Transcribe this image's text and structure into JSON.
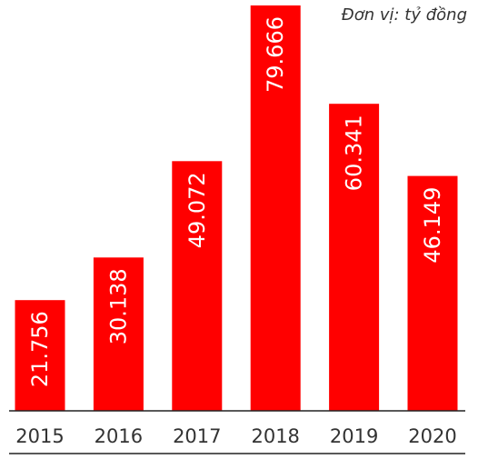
{
  "chart_data": {
    "type": "bar",
    "unit_label": "Đơn vị: tỷ đồng",
    "categories": [
      "2015",
      "2016",
      "2017",
      "2018",
      "2019",
      "2020"
    ],
    "values": [
      21756,
      30138,
      49072,
      79666,
      60341,
      46149
    ],
    "value_labels": [
      "21.756",
      "30.138",
      "49.072",
      "79.666",
      "60.341",
      "46.149"
    ],
    "ylim": [
      0,
      79666
    ],
    "bar_color": "#ff0000",
    "label_color": "#ffffff",
    "tick_color": "#333333",
    "grid": false,
    "legend": "none"
  }
}
